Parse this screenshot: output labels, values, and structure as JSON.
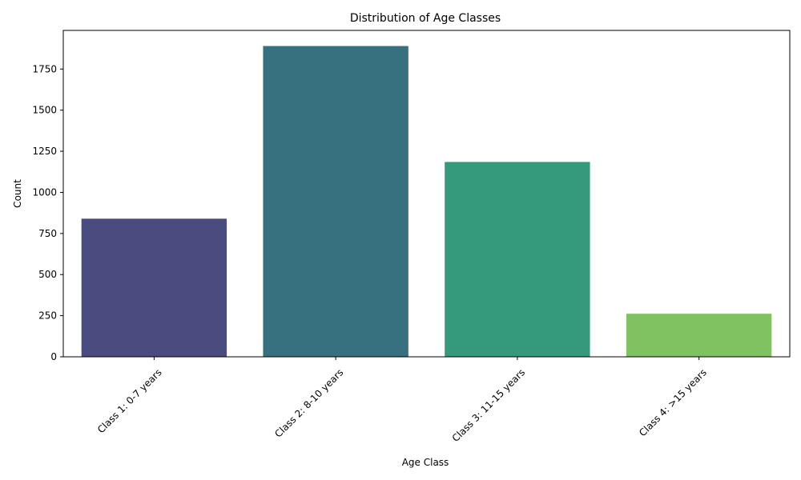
{
  "chart_data": {
    "type": "bar",
    "title": "Distribution of Age Classes",
    "xlabel": "Age Class",
    "ylabel": "Count",
    "categories": [
      "Class 1: 0-7 years",
      "Class 2: 8-10 years",
      "Class 3: 11-15 years",
      "Class 4: >15 years"
    ],
    "values": [
      840,
      1890,
      1185,
      262
    ],
    "colors": [
      "#4a4c7f",
      "#37717f",
      "#359a7c",
      "#80c262"
    ],
    "ylim": [
      0,
      1985
    ],
    "yticks": [
      0,
      250,
      500,
      750,
      1000,
      1250,
      1500,
      1750
    ],
    "grid": false,
    "legend": "none"
  }
}
